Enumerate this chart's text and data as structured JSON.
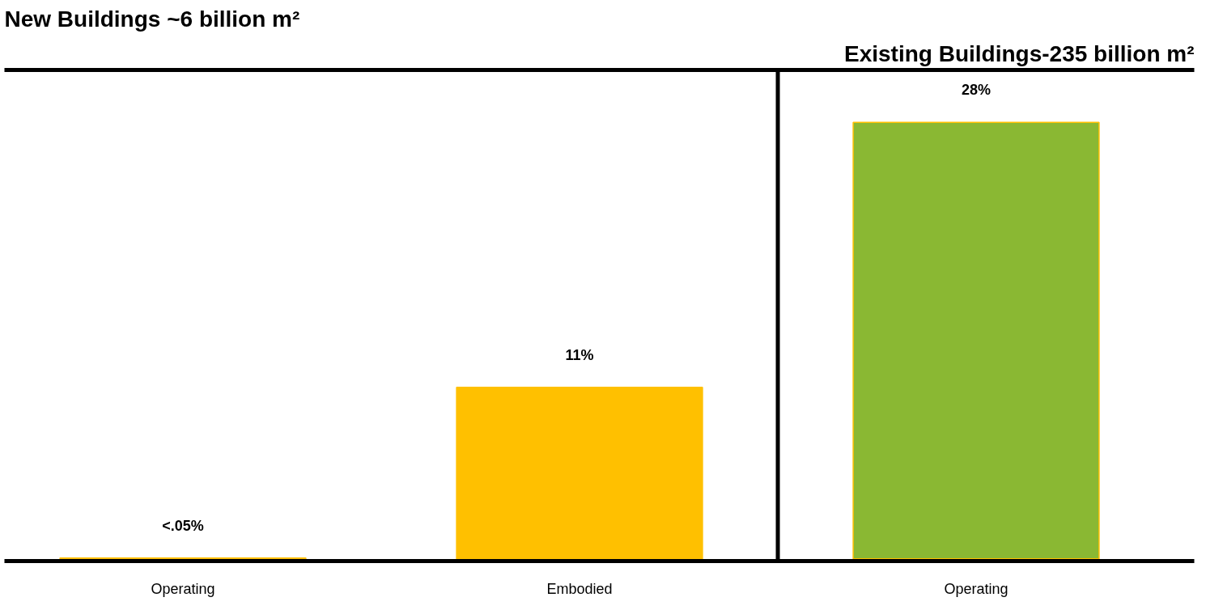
{
  "chart_data": {
    "type": "bar",
    "title": "New Buildings ~6 billion m²",
    "annotations": [
      "Existing Buildings-235 billion m²"
    ],
    "categories": [
      "Operating",
      "Embodied",
      "Operating"
    ],
    "values": [
      0.05,
      11,
      28
    ],
    "colors": [
      "#8ab833",
      "#ffc000",
      "#8ab833"
    ],
    "value_labels": [
      "<.05%",
      "11%",
      "28%"
    ],
    "tick_labels": "x",
    "grid": false
  }
}
